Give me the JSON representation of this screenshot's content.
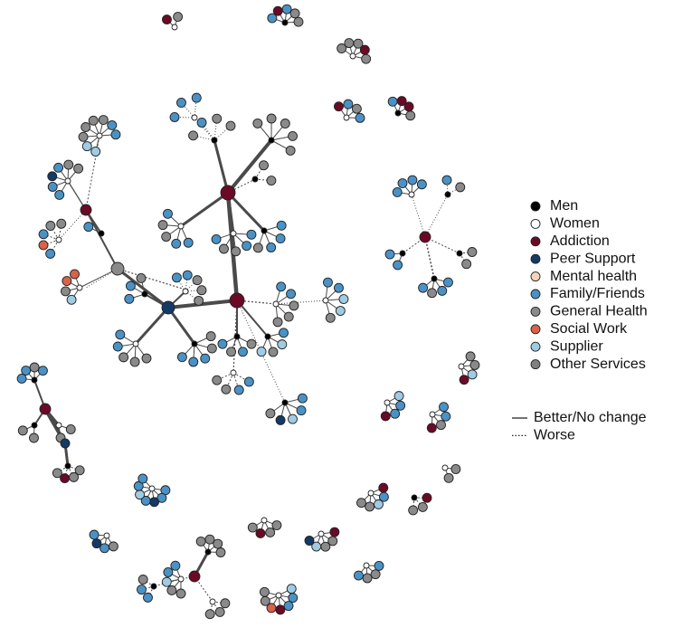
{
  "legend": {
    "node_types": [
      {
        "label": "Men",
        "color": "#000000"
      },
      {
        "label": "Women",
        "color": "#ffffff"
      },
      {
        "label": "Addiction",
        "color": "#6b0a26"
      },
      {
        "label": "Peer Support",
        "color": "#143a66"
      },
      {
        "label": "Mental health",
        "color": "#f6d3bd"
      },
      {
        "label": "Family/Friends",
        "color": "#4a92c6"
      },
      {
        "label": "General Health",
        "color": "#8a8a8a"
      },
      {
        "label": "Social Work",
        "color": "#d8624a"
      },
      {
        "label": "Supplier",
        "color": "#9fcbe3"
      },
      {
        "label": "Other Services",
        "color": "#7f7f7f"
      }
    ],
    "edge_types": [
      {
        "label": "Better/No change",
        "style": "solid"
      },
      {
        "label": "Worse",
        "style": "dotted"
      }
    ]
  }
}
